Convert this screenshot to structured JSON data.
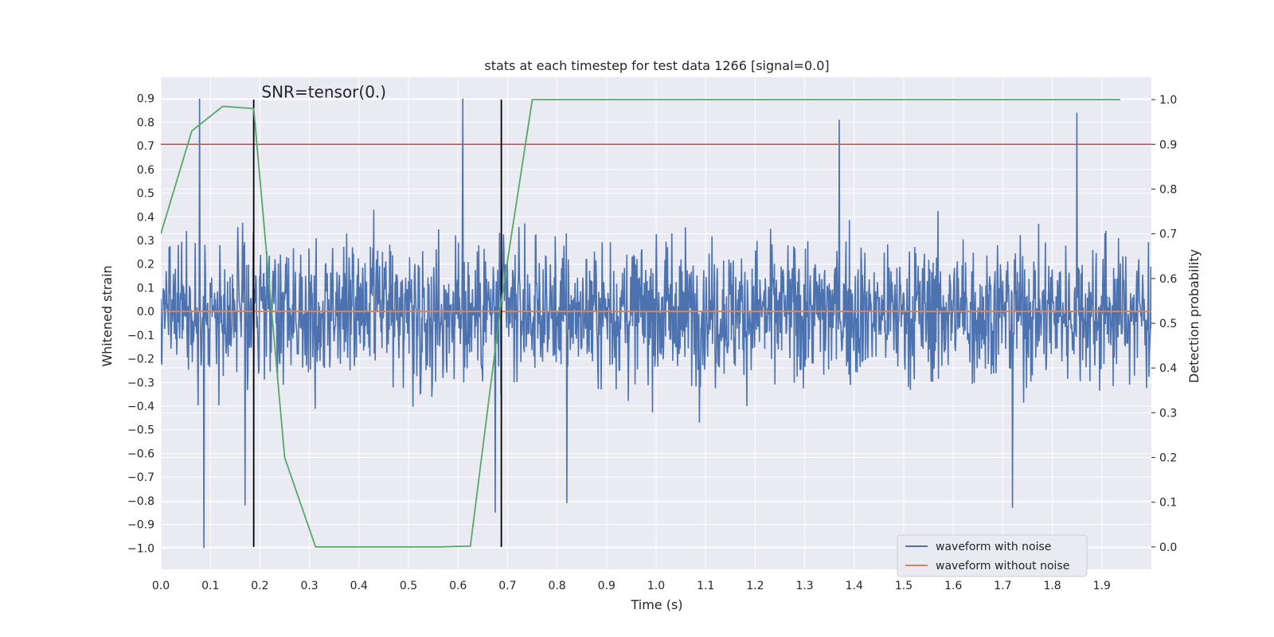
{
  "chart_data": {
    "type": "line",
    "title": "stats at each timestep for test data 1266 [signal=0.0]",
    "xlabel": "Time (s)",
    "ylabel": "Whitened strain",
    "y2label": "Detection probability",
    "xlim": [
      0.0,
      2.0
    ],
    "ylim": [
      -1.09,
      0.99
    ],
    "y2lim": [
      -0.05,
      1.05
    ],
    "x_ticks": [
      0.0,
      0.1,
      0.2,
      0.3,
      0.4,
      0.5,
      0.6,
      0.7,
      0.8,
      0.9,
      1.0,
      1.1,
      1.2,
      1.3,
      1.4,
      1.5,
      1.6,
      1.7,
      1.8,
      1.9
    ],
    "x_tick_labels": [
      "0.0",
      "0.1",
      "0.2",
      "0.3",
      "0.4",
      "0.5",
      "0.6",
      "0.7",
      "0.8",
      "0.9",
      "1.0",
      "1.1",
      "1.2",
      "1.3",
      "1.4",
      "1.5",
      "1.6",
      "1.7",
      "1.8",
      "1.9"
    ],
    "y_ticks": [
      0.9,
      0.8,
      0.7,
      0.6,
      0.5,
      0.4,
      0.3,
      0.2,
      0.1,
      0.0,
      -0.1,
      -0.2,
      -0.3,
      -0.4,
      -0.5,
      -0.6,
      -0.7,
      -0.8,
      -0.9,
      -1.0
    ],
    "y_tick_labels": [
      "0.9",
      "0.8",
      "0.7",
      "0.6",
      "0.5",
      "0.4",
      "0.3",
      "0.2",
      "0.1",
      "0.0",
      "−0.1",
      "−0.2",
      "−0.3",
      "−0.4",
      "−0.5",
      "−0.6",
      "−0.7",
      "−0.8",
      "−0.9",
      "−1.0"
    ],
    "y2_ticks": [
      1.0,
      0.9,
      0.8,
      0.7,
      0.6,
      0.5,
      0.4,
      0.3,
      0.2,
      0.1,
      0.0
    ],
    "y2_tick_labels": [
      "1.0",
      "0.9",
      "0.8",
      "0.7",
      "0.6",
      "0.5",
      "0.4",
      "0.3",
      "0.2",
      "0.1",
      "0.0"
    ],
    "grid": true,
    "legend_position": "bottom-right",
    "annotation": {
      "text": "SNR=tensor(0.)",
      "x": 0.2,
      "y": 0.9
    },
    "vertical_lines_x": [
      0.1875,
      0.6875
    ],
    "horizontal_line_y2": 0.9,
    "series": [
      {
        "name": "waveform with noise",
        "axis": "left",
        "color": "#4c72b0",
        "x_range": [
          0.0,
          2.0
        ],
        "samples": 2048,
        "distribution": {
          "mean": 0.0,
          "typical_range": [
            -0.6,
            0.65
          ]
        },
        "extremes": [
          {
            "x": 0.078,
            "y": 0.9
          },
          {
            "x": 0.087,
            "y": -1.0
          },
          {
            "x": 0.17,
            "y": -0.82
          },
          {
            "x": 0.61,
            "y": 0.9
          },
          {
            "x": 0.675,
            "y": -0.85
          },
          {
            "x": 1.37,
            "y": 0.81
          },
          {
            "x": 1.72,
            "y": -0.83
          },
          {
            "x": 1.85,
            "y": 0.84
          },
          {
            "x": 0.82,
            "y": -0.81
          }
        ]
      },
      {
        "name": "waveform without noise",
        "axis": "left",
        "color": "#dd8452",
        "x": [
          0.0,
          2.0
        ],
        "y": [
          0.0,
          0.0
        ]
      },
      {
        "name": "",
        "axis": "right",
        "color": "#55a868",
        "x": [
          0.0,
          0.0625,
          0.125,
          0.1875,
          0.25,
          0.3125,
          0.375,
          0.4375,
          0.5,
          0.5625,
          0.625,
          0.6875,
          0.75,
          0.8125,
          0.875,
          0.9375,
          1.0,
          1.0625,
          1.125,
          1.1875,
          1.25,
          1.3125,
          1.375,
          1.4375,
          1.5,
          1.5625,
          1.625,
          1.6875,
          1.75,
          1.8125,
          1.875,
          1.9375
        ],
        "y": [
          0.7,
          0.93,
          0.985,
          0.98,
          0.2,
          0.0,
          0.0,
          0.0,
          0.0,
          0.0,
          0.002,
          0.55,
          1.0,
          1.0,
          1.0,
          1.0,
          1.0,
          1.0,
          1.0,
          1.0,
          1.0,
          1.0,
          1.0,
          1.0,
          1.0,
          1.0,
          1.0,
          1.0,
          1.0,
          1.0,
          1.0,
          1.0
        ]
      }
    ],
    "colors": {
      "plot_background": "#eaeaf2",
      "grid": "#ffffff",
      "threshold_line": "#c44e52",
      "vertical_lines": "#000000"
    }
  }
}
